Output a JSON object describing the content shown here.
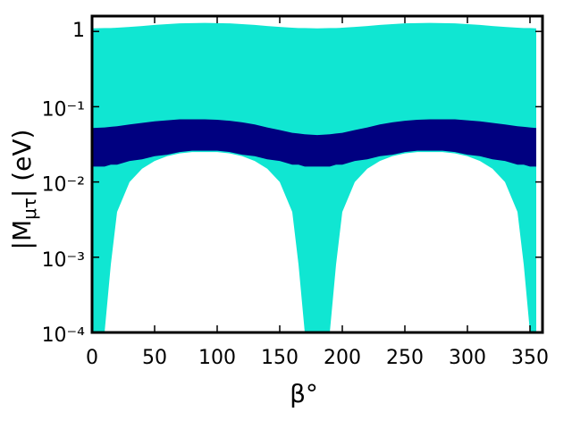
{
  "chart_data": {
    "type": "range",
    "xlabel": "β°",
    "ylabel_parts": [
      "|M",
      "μτ",
      "| (eV)"
    ],
    "x": [
      0,
      10,
      15,
      20,
      30,
      40,
      50,
      60,
      70,
      80,
      90,
      100,
      110,
      120,
      130,
      140,
      150,
      160,
      165,
      170,
      180,
      190,
      195,
      200,
      210,
      220,
      230,
      240,
      250,
      260,
      270,
      280,
      290,
      300,
      310,
      320,
      330,
      340,
      345,
      350,
      355
    ],
    "series": [
      {
        "color": "#10e6d2",
        "upper": [
          1.1,
          1.11,
          1.11,
          1.12,
          1.15,
          1.18,
          1.22,
          1.25,
          1.28,
          1.29,
          1.3,
          1.29,
          1.28,
          1.25,
          1.22,
          1.18,
          1.15,
          1.12,
          1.11,
          1.11,
          1.1,
          1.11,
          1.11,
          1.12,
          1.15,
          1.18,
          1.22,
          1.25,
          1.28,
          1.29,
          1.3,
          1.29,
          1.28,
          1.25,
          1.22,
          1.18,
          1.15,
          1.12,
          1.11,
          1.11,
          1.1
        ],
        "lower": [
          0.0001,
          0.0001,
          0.0008,
          0.004,
          0.01,
          0.015,
          0.019,
          0.022,
          0.024,
          0.025,
          0.025,
          0.025,
          0.024,
          0.022,
          0.019,
          0.015,
          0.01,
          0.004,
          0.0008,
          0.0001,
          0.0001,
          0.0001,
          0.0008,
          0.004,
          0.01,
          0.015,
          0.019,
          0.022,
          0.024,
          0.025,
          0.025,
          0.025,
          0.024,
          0.022,
          0.019,
          0.015,
          0.01,
          0.004,
          0.0008,
          0.0001,
          0.0001
        ]
      },
      {
        "color": "#000080",
        "upper": [
          0.052,
          0.053,
          0.054,
          0.055,
          0.058,
          0.061,
          0.064,
          0.066,
          0.068,
          0.068,
          0.068,
          0.067,
          0.065,
          0.062,
          0.058,
          0.053,
          0.049,
          0.045,
          0.044,
          0.043,
          0.042,
          0.043,
          0.044,
          0.045,
          0.049,
          0.053,
          0.058,
          0.062,
          0.065,
          0.067,
          0.068,
          0.068,
          0.068,
          0.066,
          0.064,
          0.061,
          0.058,
          0.055,
          0.054,
          0.053,
          0.052
        ],
        "lower": [
          0.016,
          0.016,
          0.017,
          0.017,
          0.019,
          0.02,
          0.022,
          0.023,
          0.025,
          0.026,
          0.026,
          0.026,
          0.025,
          0.023,
          0.022,
          0.02,
          0.019,
          0.017,
          0.017,
          0.016,
          0.016,
          0.016,
          0.017,
          0.017,
          0.019,
          0.02,
          0.022,
          0.023,
          0.025,
          0.026,
          0.026,
          0.026,
          0.025,
          0.023,
          0.022,
          0.02,
          0.019,
          0.017,
          0.017,
          0.016,
          0.016
        ]
      }
    ],
    "xlim": [
      0,
      360
    ],
    "xticks": [
      0,
      50,
      100,
      150,
      200,
      250,
      300,
      350
    ],
    "ylim": [
      0.0001,
      1.6
    ],
    "yscale": "log",
    "yticks": [
      {
        "value": 0.0001,
        "label": "10⁻⁴"
      },
      {
        "value": 0.001,
        "label": "10⁻³"
      },
      {
        "value": 0.01,
        "label": "10⁻²"
      },
      {
        "value": 0.1,
        "label": "10⁻¹"
      },
      1
    ]
  }
}
